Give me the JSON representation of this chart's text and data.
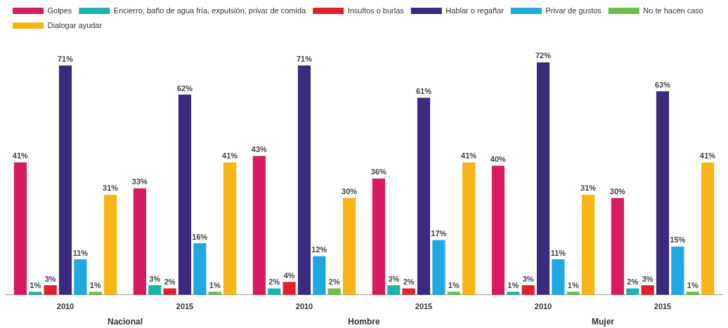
{
  "chart_data": {
    "type": "bar",
    "categories": [
      "2010",
      "2015",
      "2010",
      "2015",
      "2010",
      "2015"
    ],
    "series": [
      {
        "name": "Golpes",
        "color": "#d81b60",
        "values": [
          41,
          33,
          43,
          36,
          40,
          30
        ],
        "value_labels": [
          "41%",
          "33%",
          "43%",
          "36%",
          "40%",
          "30%"
        ]
      },
      {
        "name": "Encierro, baño de agua fría, expulsión, privar de comida",
        "color": "#1bb3ae",
        "values": [
          1,
          3,
          2,
          3,
          1,
          2
        ],
        "value_labels": [
          "1%",
          "3%",
          "2%",
          "3%",
          "1%",
          "2%"
        ]
      },
      {
        "name": "Insultos o burlas",
        "color": "#e3202a",
        "values": [
          3,
          2,
          4,
          2,
          3,
          3
        ],
        "value_labels": [
          "3%",
          "2%",
          "4%",
          "2%",
          "3%",
          "3%"
        ]
      },
      {
        "name": "Hablar o regañar",
        "color": "#3b2a7e",
        "values": [
          71,
          62,
          71,
          61,
          72,
          63
        ],
        "value_labels": [
          "71%",
          "62%",
          "71%",
          "61%",
          "72%",
          "63%"
        ]
      },
      {
        "name": "Privar de gustos",
        "color": "#1ea9e1",
        "values": [
          11,
          16,
          12,
          17,
          11,
          15
        ],
        "value_labels": [
          "11%",
          "16%",
          "12%",
          "17%",
          "11%",
          "15%"
        ]
      },
      {
        "name": "No te hacen caso",
        "color": "#6cc04a",
        "values": [
          1,
          1,
          2,
          1,
          1,
          1
        ],
        "value_labels": [
          "1%",
          "1%",
          "2%",
          "1%",
          "1%",
          "1%"
        ]
      },
      {
        "name": "Dialogar ayudar",
        "color": "#f8b414",
        "values": [
          31,
          41,
          30,
          41,
          31,
          41
        ],
        "value_labels": [
          "31%",
          "41%",
          "30%",
          "41%",
          "31%",
          "41%"
        ]
      }
    ],
    "annotations": [
      "Nacional",
      "Hombre",
      "Mujer"
    ],
    "legend": "top left",
    "grid": false,
    "tick_labels": "x"
  }
}
